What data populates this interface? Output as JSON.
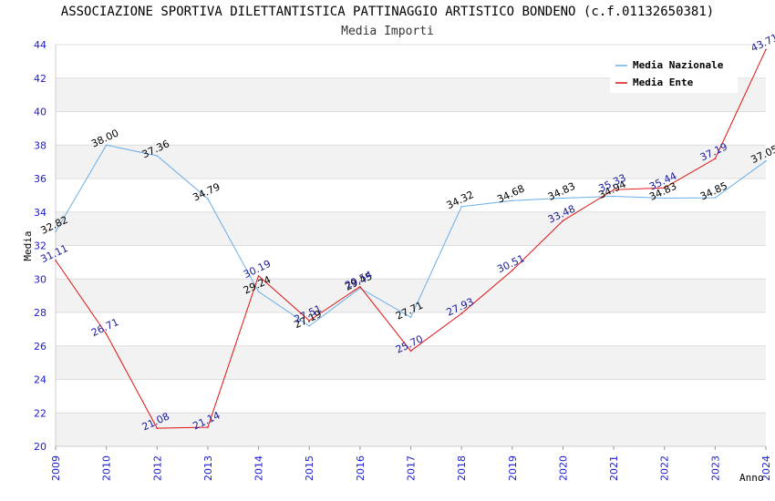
{
  "chart_data": {
    "type": "line",
    "title": "ASSOCIAZIONE SPORTIVA DILETTANTISTICA PATTINAGGIO ARTISTICO BONDENO (c.f.01132650381)",
    "subtitle": "Media Importi",
    "xlabel": "Anno",
    "ylabel": "Media",
    "ylim": [
      20,
      44
    ],
    "yticks": [
      20,
      22,
      24,
      26,
      28,
      30,
      32,
      34,
      36,
      38,
      40,
      42,
      44
    ],
    "categories": [
      "2009",
      "2010",
      "2012",
      "2013",
      "2014",
      "2015",
      "2016",
      "2017",
      "2018",
      "2019",
      "2020",
      "2021",
      "2022",
      "2023",
      "2024"
    ],
    "series": [
      {
        "name": "Media Nazionale",
        "color": "#6aaee8",
        "values": [
          32.82,
          38.0,
          37.36,
          34.79,
          29.24,
          27.19,
          29.45,
          27.71,
          34.32,
          34.68,
          34.83,
          34.94,
          34.83,
          34.85,
          37.05
        ],
        "labels": [
          "32.82",
          "38.00",
          "37.36",
          "34.79",
          "29.24",
          "27.19",
          "29.45",
          "27.71",
          "34.32",
          "34.68",
          "34.83",
          "34.94",
          "34.83",
          "34.85",
          "37.05"
        ]
      },
      {
        "name": "Media Ente",
        "color": "#e01010",
        "values": [
          31.11,
          26.71,
          21.08,
          21.14,
          30.19,
          27.51,
          29.54,
          25.7,
          27.93,
          30.51,
          33.48,
          35.33,
          35.44,
          37.19,
          43.71
        ],
        "labels": [
          "31.11",
          "26.71",
          "21.08",
          "21.14",
          "30.19",
          "27.51",
          "29.54",
          "25.70",
          "27.93",
          "30.51",
          "33.48",
          "35.33",
          "35.44",
          "37.19",
          "43.71"
        ]
      }
    ],
    "legend_position": "top-right",
    "grid": true
  }
}
